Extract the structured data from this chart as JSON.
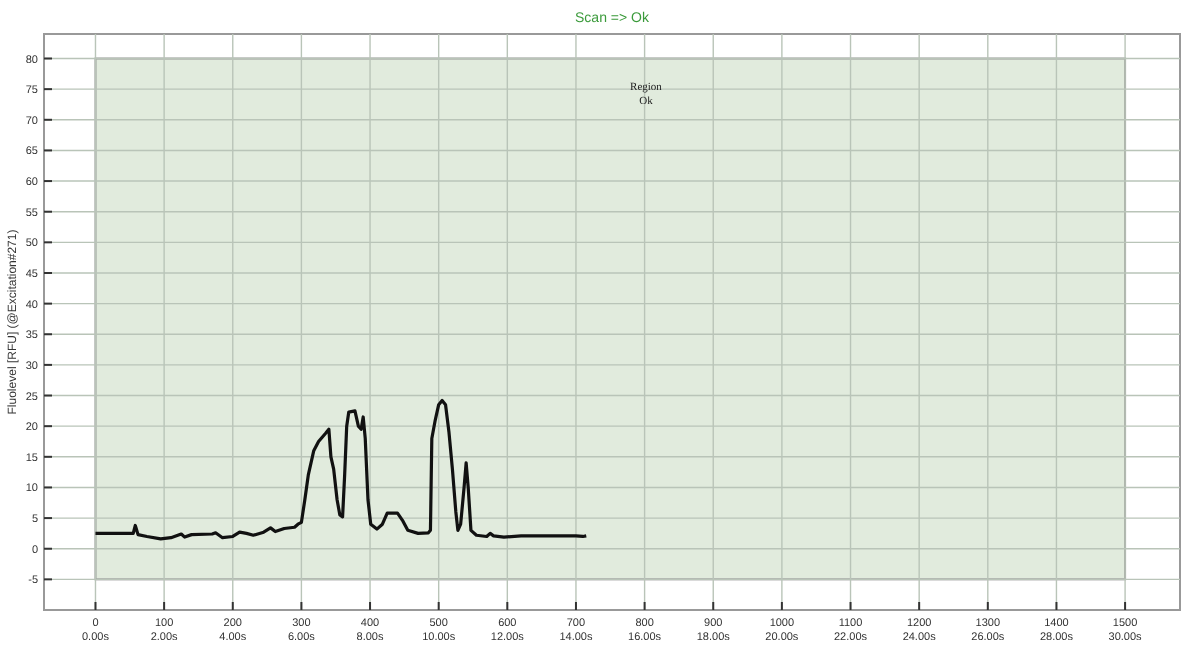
{
  "chart_data": {
    "type": "line",
    "title": "Scan => Ok",
    "ylabel": "Fluolevel [RFU] (@Excitation#271)",
    "annotations": [
      "Region\nOk"
    ],
    "xlim": [
      -75,
      1580
    ],
    "ylim": [
      -10,
      84
    ],
    "xticks": [
      0,
      100,
      200,
      300,
      400,
      500,
      600,
      700,
      800,
      900,
      1000,
      1100,
      1200,
      1300,
      1400,
      1500
    ],
    "x2lim": [
      -1.5,
      31.6
    ],
    "x2ticks": [
      {
        "value": 0,
        "label": "0.00s"
      },
      {
        "value": 2,
        "label": "2.00s"
      },
      {
        "value": 4,
        "label": "4.00s"
      },
      {
        "value": 6,
        "label": "6.00s"
      },
      {
        "value": 8,
        "label": "8.00s"
      },
      {
        "value": 10,
        "label": "10.00s"
      },
      {
        "value": 12,
        "label": "12.00s"
      },
      {
        "value": 14,
        "label": "14.00s"
      },
      {
        "value": 16,
        "label": "16.00s"
      },
      {
        "value": 18,
        "label": "18.00s"
      },
      {
        "value": 20,
        "label": "20.00s"
      },
      {
        "value": 22,
        "label": "22.00s"
      },
      {
        "value": 24,
        "label": "24.00s"
      },
      {
        "value": 26,
        "label": "26.00s"
      },
      {
        "value": 28,
        "label": "28.00s"
      },
      {
        "value": 30,
        "label": "30.00s"
      }
    ],
    "yticks": [
      -5,
      0,
      5,
      10,
      15,
      20,
      25,
      30,
      35,
      40,
      45,
      50,
      55,
      60,
      65,
      70,
      75,
      80
    ],
    "grid": true,
    "marker": "none",
    "line_style": "solid",
    "series": [
      {
        "color": "#111111",
        "x": [
          0,
          55,
          58,
          62,
          75,
          95,
          110,
          125,
          130,
          140,
          170,
          175,
          185,
          200,
          210,
          220,
          230,
          245,
          255,
          262,
          275,
          290,
          295,
          300,
          305,
          310,
          318,
          325,
          335,
          340,
          343,
          347,
          352,
          356,
          360,
          363,
          366,
          369,
          378,
          383,
          387,
          390,
          393,
          397,
          401,
          410,
          418,
          425,
          440,
          448,
          455,
          470,
          485,
          488,
          490,
          495,
          500,
          505,
          510,
          515,
          520,
          525,
          528,
          532,
          537,
          540,
          543,
          547,
          555,
          570,
          575,
          580,
          595,
          620,
          700,
          710,
          715
        ],
        "values": [
          2.5,
          2.5,
          3.8,
          2.3,
          2.0,
          1.6,
          1.8,
          2.4,
          1.9,
          2.3,
          2.4,
          2.6,
          1.8,
          2.0,
          2.7,
          2.5,
          2.2,
          2.7,
          3.4,
          2.8,
          3.3,
          3.5,
          4.0,
          4.3,
          8,
          12,
          16,
          17.5,
          18.8,
          19.5,
          15,
          13,
          8,
          5.5,
          5.2,
          12,
          20,
          22.3,
          22.5,
          20,
          19.5,
          21.5,
          18,
          8,
          4,
          3.2,
          4,
          5.8,
          5.8,
          4.5,
          3,
          2.5,
          2.6,
          3,
          18,
          21,
          23.5,
          24.2,
          23.5,
          19,
          13,
          6,
          3,
          4,
          10,
          14,
          10,
          3,
          2.2,
          2.0,
          2.5,
          2.1,
          1.9,
          2.1,
          2.1,
          2.0,
          2.1
        ]
      }
    ]
  }
}
